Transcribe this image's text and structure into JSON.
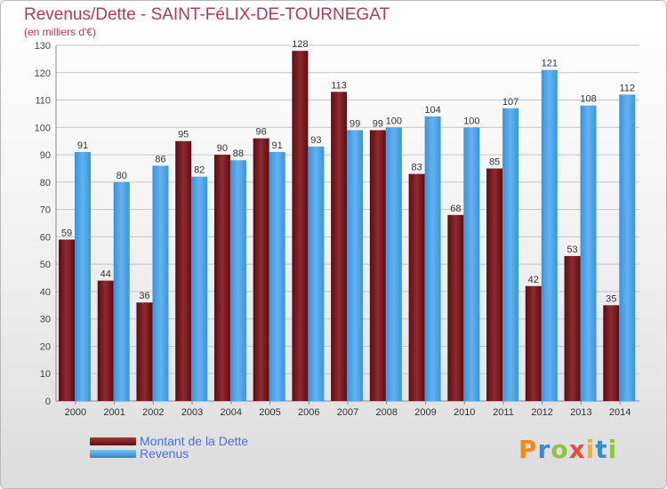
{
  "header": {
    "title": "Revenus/Dette - SAINT-FéLIX-DE-TOURNEGAT",
    "subtitle": "(en milliers d'€)"
  },
  "chart_data": {
    "type": "bar",
    "categories": [
      "2000",
      "2001",
      "2002",
      "2003",
      "2004",
      "2005",
      "2006",
      "2007",
      "2008",
      "2009",
      "2010",
      "2011",
      "2012",
      "2013",
      "2014"
    ],
    "series": [
      {
        "name": "Montant de la Dette",
        "values": [
          59,
          44,
          36,
          95,
          90,
          96,
          128,
          113,
          99,
          83,
          68,
          85,
          42,
          53,
          35
        ],
        "color": "#7a1c22"
      },
      {
        "name": "Revenus",
        "values": [
          91,
          80,
          86,
          82,
          88,
          91,
          93,
          99,
          100,
          104,
          100,
          107,
          121,
          108,
          112
        ],
        "color": "#4fa3e6"
      }
    ],
    "title": "Revenus/Dette - SAINT-FéLIX-DE-TOURNEGAT",
    "subtitle": "(en milliers d'€)",
    "xlabel": "",
    "ylabel": "",
    "ylim": [
      0,
      130
    ],
    "yticks": [
      0,
      10,
      20,
      30,
      40,
      50,
      60,
      70,
      80,
      90,
      100,
      110,
      120,
      130
    ],
    "grid": true,
    "legend_position": "bottom-left"
  },
  "legend": {
    "dette_label": "Montant de la Dette",
    "revenus_label": "Revenus",
    "dette_color": "#7a1c22",
    "revenus_color": "#4fa3e6"
  },
  "branding": {
    "logo_text": "Proxiti"
  }
}
